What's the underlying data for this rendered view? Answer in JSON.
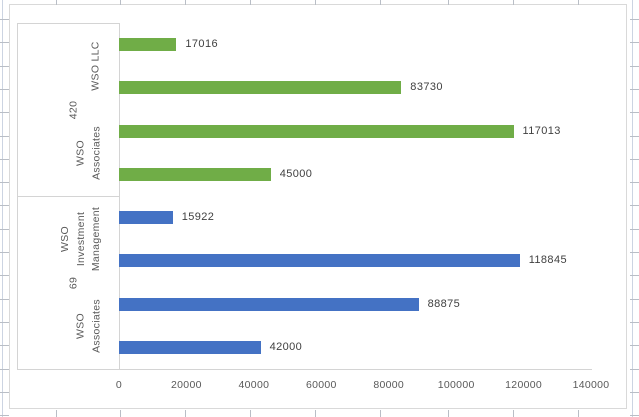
{
  "app": {
    "surface": "excel-worksheet-chart"
  },
  "chart_data": {
    "type": "bar",
    "orientation": "horizontal",
    "title": "",
    "xlabel": "",
    "ylabel": "",
    "xlim": [
      0,
      140000
    ],
    "x_tick_interval": 20000,
    "x_ticks": [
      "0",
      "20000",
      "40000",
      "60000",
      "80000",
      "100000",
      "120000",
      "140000"
    ],
    "grid": false,
    "legend": false,
    "data_labels_shown": true,
    "axis_groups": [
      {
        "group_label": "420",
        "series_color": "#70AD47",
        "categories": [
          {
            "label": "WSO LLC",
            "label_lines": [
              "WSO LLC"
            ],
            "values": [
              17016,
              83730
            ]
          },
          {
            "label": "WSO Associates",
            "label_lines": [
              "WSO",
              "Associates"
            ],
            "values": [
              117013,
              45000
            ]
          }
        ]
      },
      {
        "group_label": "69",
        "series_color": "#4472C4",
        "categories": [
          {
            "label": "WSO Investment Management",
            "label_lines": [
              "WSO",
              "Investment",
              "Management"
            ],
            "values": [
              15922,
              118845
            ]
          },
          {
            "label": "WSO Associates",
            "label_lines": [
              "WSO",
              "Associates"
            ],
            "values": [
              88875,
              42000
            ]
          }
        ]
      }
    ],
    "bars_top_to_bottom": [
      {
        "label": "17016",
        "value": 17016,
        "color": "#70AD47"
      },
      {
        "label": "83730",
        "value": 83730,
        "color": "#70AD47"
      },
      {
        "label": "117013",
        "value": 117013,
        "color": "#70AD47"
      },
      {
        "label": "45000",
        "value": 45000,
        "color": "#70AD47"
      },
      {
        "label": "15922",
        "value": 15922,
        "color": "#4472C4"
      },
      {
        "label": "118845",
        "value": 118845,
        "color": "#4472C4"
      },
      {
        "label": "88875",
        "value": 88875,
        "color": "#4472C4"
      },
      {
        "label": "42000",
        "value": 42000,
        "color": "#4472C4"
      }
    ],
    "colors": {
      "series_420": "#70AD47",
      "series_69": "#4472C4",
      "axis_lines": "#D4D4D4",
      "tick_text": "#595959",
      "data_label_text": "#404040",
      "sheet_gridline": "#CCD4E2"
    }
  }
}
